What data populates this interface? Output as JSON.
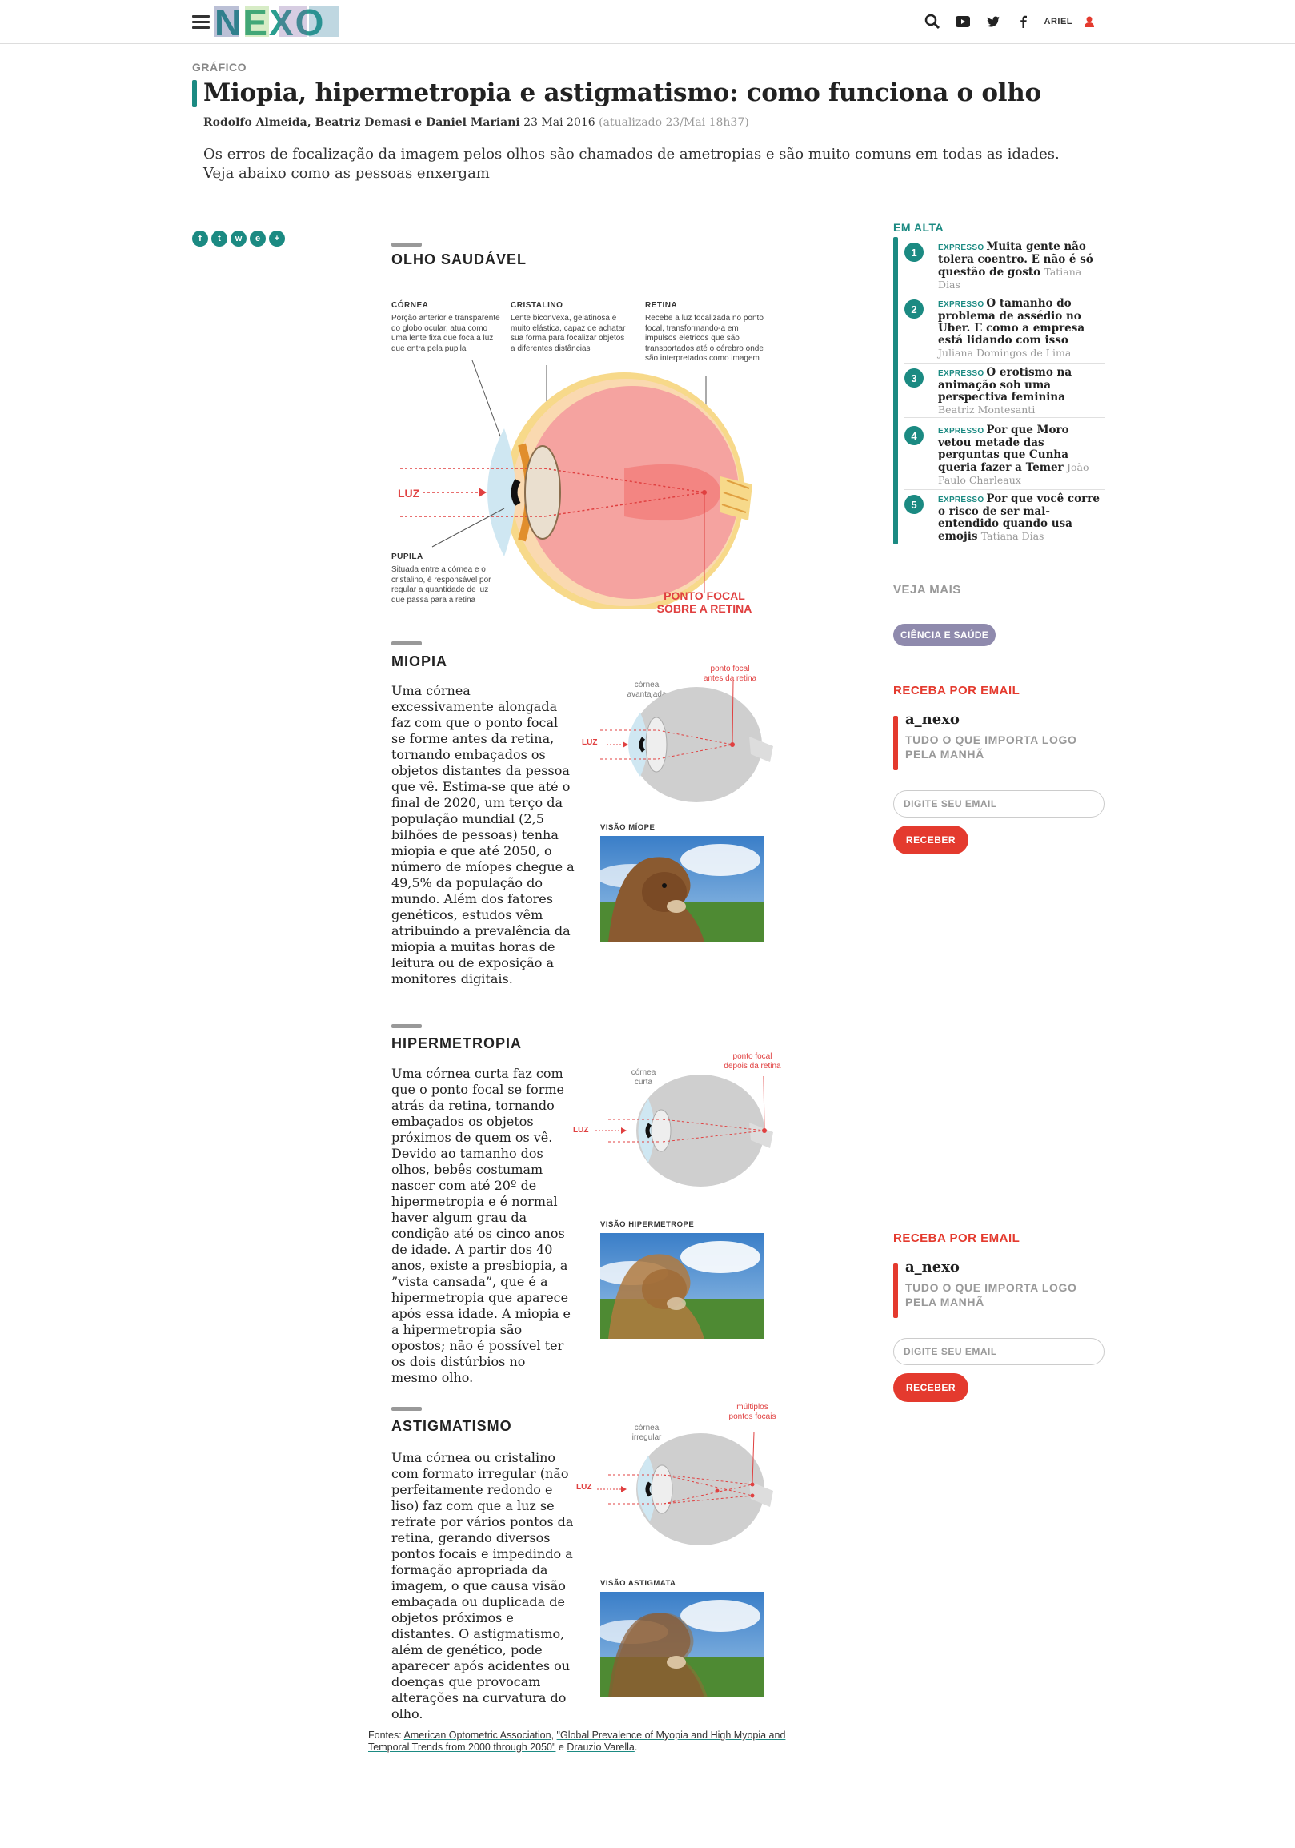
{
  "header": {
    "brand": "NEXO",
    "user_label": "ARIEL",
    "icons": [
      "menu-icon",
      "search-icon",
      "youtube-icon",
      "twitter-icon",
      "facebook-icon",
      "user-icon"
    ]
  },
  "article": {
    "category": "GRÁFICO",
    "title": "Miopia, hipermetropia e astigmatismo: como funciona o olho",
    "authors": "Rodolfo Almeida, Beatriz Demasi e Daniel Mariani",
    "date": "23 Mai 2016",
    "updated": "(atualizado 23/Mai 18h37)",
    "lede": "Os erros de focalização da imagem pelos olhos são chamados de ametropias e são muito comuns em todas as idades. Veja abaixo como as pessoas enxergam"
  },
  "share": [
    "f",
    "t",
    "w",
    "e",
    "+"
  ],
  "graphic": {
    "healthy": {
      "title": "OLHO SAUDÁVEL",
      "cornea_label": "CÓRNEA",
      "cornea_text": "Porção anterior e transparente do globo ocular, atua como uma lente fixa que foca a luz que entra pela pupila",
      "lens_label": "CRISTALINO",
      "lens_text": "Lente biconvexa, gelatinosa e muito elástica, capaz de achatar sua forma para focalizar objetos a diferentes distâncias",
      "retina_label": "RETINA",
      "retina_text": "Recebe a luz focalizada no ponto focal, transformando-a em impulsos elétricos que são transportados até o cérebro onde são interpretados como imagem",
      "pupil_label": "PUPILA",
      "pupil_text": "Situada entre a córnea e o cristalino, é responsável por regular a quantidade de luz que passa para a retina",
      "light_label": "LUZ",
      "focal_label_1": "PONTO FOCAL",
      "focal_label_2": "SOBRE A RETINA"
    },
    "myopia": {
      "title": "MIOPIA",
      "text": "Uma córnea excessivamente alongada faz com que o ponto focal se forme antes da retina, tornando embaçados os objetos distantes da pessoa que vê. Estima-se que até o final de 2020, um terço da população mundial (2,5 bilhões de pessoas) tenha miopia e que até 2050, o número de míopes chegue a 49,5% da população do mundo. Além dos fatores genéticos, estudos vêm atribuindo a prevalência da miopia a muitas horas de leitura ou de exposição a monitores digitais.",
      "cornea_label": "córnea avantajada",
      "focal_label": "ponto focal antes da retina",
      "light_label": "LUZ",
      "vision_label": "VISÃO MÍOPE"
    },
    "hyperopia": {
      "title": "HIPERMETROPIA",
      "text": "Uma córnea curta faz com que o ponto focal se forme atrás da retina, tornando embaçados os objetos próximos de quem os vê. Devido ao tamanho dos olhos, bebês costumam nascer com até 20º de hipermetropia e é normal haver algum grau da condição até os cinco anos de idade. A partir dos 40 anos, existe a presbiopia, a ”vista cansada”, que é a hipermetropia que aparece após essa idade. A miopia e a hipermetropia são opostos; não é possível ter os dois distúrbios no mesmo olho.",
      "cornea_label": "córnea curta",
      "focal_label": "ponto focal depois da retina",
      "light_label": "LUZ",
      "vision_label": "VISÃO HIPERMETROPE"
    },
    "astigmatism": {
      "title": "ASTIGMATISMO",
      "text": "Uma córnea ou cristalino com formato irregular (não perfeitamente redondo e liso) faz com que a luz se refrate por vários pontos da retina, gerando diversos pontos focais e impedindo a formação apropriada da imagem, o que causa visão embaçada ou duplicada de objetos próximos e distantes. O astigmatismo, além de genético, pode aparecer após acidentes ou doenças que provocam alterações na curvatura do olho.",
      "cornea_label": "córnea irregular",
      "focal_label": "múltiplos pontos focais",
      "light_label": "LUZ",
      "vision_label": "VISÃO ASTIGMATA"
    },
    "sources": {
      "prefix": "Fontes: ",
      "link1": "American Optometric Association",
      "sep1": ", ",
      "link2": "\"Global Prevalence of Myopia and High Myopia and Temporal Trends from 2000 through 2050\"",
      "sep2": " e ",
      "link3": "Drauzio Varella",
      "suffix": "."
    }
  },
  "sidebar": {
    "trending_title": "EM ALTA",
    "trending": [
      {
        "num": "1",
        "kicker": "EXPRESSO",
        "title": "Muita gente não tolera coentro. E não é só questão de gosto",
        "author": "Tatiana Dias"
      },
      {
        "num": "2",
        "kicker": "EXPRESSO",
        "title": "O tamanho do problema de assédio no Uber. E como a empresa está lidando com isso",
        "author": "Juliana Domingos de Lima"
      },
      {
        "num": "3",
        "kicker": "EXPRESSO",
        "title": "O erotismo na animação sob uma perspectiva feminina",
        "author": "Beatriz Montesanti"
      },
      {
        "num": "4",
        "kicker": "EXPRESSO",
        "title": "Por que Moro vetou metade das perguntas que Cunha queria fazer a Temer",
        "author": "João Paulo Charleaux"
      },
      {
        "num": "5",
        "kicker": "EXPRESSO",
        "title": "Por que você corre o risco de ser mal-entendido quando usa emojis",
        "author": "Tatiana Dias"
      }
    ],
    "see_more": "VEJA MAIS",
    "tag": "CIÊNCIA E SAÚDE",
    "newsletter": {
      "heading": "RECEBA POR EMAIL",
      "brand": "a_nexo",
      "desc": "TUDO O QUE IMPORTA LOGO PELA MANHÃ",
      "placeholder": "DIGITE SEU EMAIL",
      "button": "RECEBER"
    }
  }
}
